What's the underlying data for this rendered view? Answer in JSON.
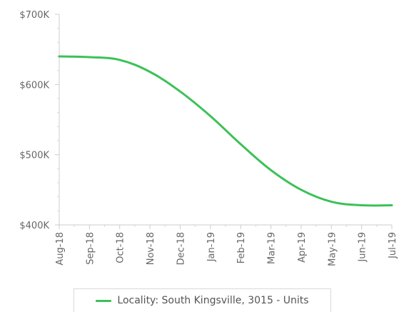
{
  "chart_data": {
    "type": "line",
    "title": "",
    "xlabel": "",
    "ylabel": "",
    "categories": [
      "Aug-18",
      "Sep-18",
      "Oct-18",
      "Nov-18",
      "Dec-18",
      "Jan-19",
      "Feb-19",
      "Mar-19",
      "Apr-19",
      "May-19",
      "Jun-19",
      "Jul-19"
    ],
    "ylim": [
      400000,
      700000
    ],
    "yticks": [
      {
        "value": 400000,
        "label": "$400K"
      },
      {
        "value": 500000,
        "label": "$500K"
      },
      {
        "value": 600000,
        "label": "$600K"
      },
      {
        "value": 700000,
        "label": "$700K"
      }
    ],
    "grid": false,
    "legend_position": "bottom",
    "series": [
      {
        "name": "Locality: South Kingsville, 3015 - Units",
        "color": "#3cc157",
        "values": [
          640000,
          639000,
          635000,
          618000,
          590000,
          555000,
          515000,
          478000,
          450000,
          433000,
          428000,
          428000
        ]
      }
    ]
  }
}
